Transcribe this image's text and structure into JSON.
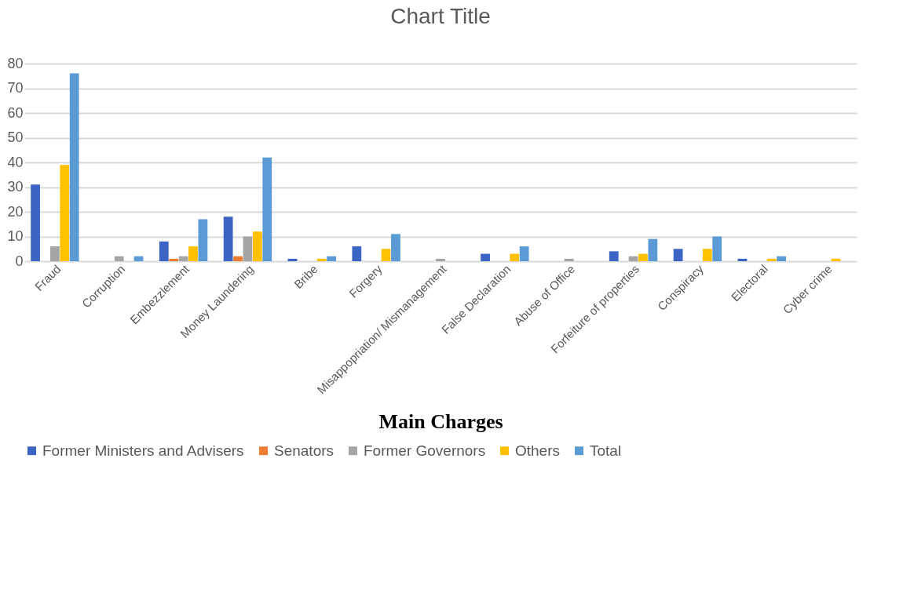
{
  "chart_data": {
    "type": "bar",
    "title": "Chart Title",
    "xlabel": "Main Charges",
    "categories": [
      "Fraud",
      "Corruption",
      "Embezzlement",
      "Money Laundering",
      "Bribe",
      "Forgery",
      "Misappopriation/ Mismanagement",
      "False Declaration",
      "Abuse of Office",
      "Forfeiture of properties",
      "Conspiracy",
      "Electoral",
      "Cyber crime"
    ],
    "series": [
      {
        "name": "Former Ministers and Advisers",
        "color": "#3c64c4",
        "values": [
          31,
          0,
          8,
          18,
          1,
          6,
          0,
          3,
          0,
          4,
          5,
          1,
          0
        ]
      },
      {
        "name": "Senators",
        "color": "#ed7d31",
        "values": [
          0,
          0,
          1,
          2,
          0,
          0,
          0,
          0,
          0,
          0,
          0,
          0,
          0
        ]
      },
      {
        "name": "Former Governors",
        "color": "#a5a5a5",
        "values": [
          6,
          2,
          2,
          10,
          0,
          0,
          1,
          0,
          1,
          2,
          0,
          0,
          0
        ]
      },
      {
        "name": "Others",
        "color": "#ffc000",
        "values": [
          39,
          0,
          6,
          12,
          1,
          5,
          0,
          3,
          0,
          3,
          5,
          1,
          1
        ]
      },
      {
        "name": "Total",
        "color": "#5b9bd5",
        "values": [
          76,
          2,
          17,
          42,
          2,
          11,
          0,
          6,
          0,
          9,
          10,
          2,
          0
        ]
      }
    ],
    "ylim": [
      0,
      80
    ],
    "yticks": [
      0,
      10,
      20,
      30,
      40,
      50,
      60,
      70,
      80
    ],
    "grid": "y",
    "legend": "bottom"
  }
}
